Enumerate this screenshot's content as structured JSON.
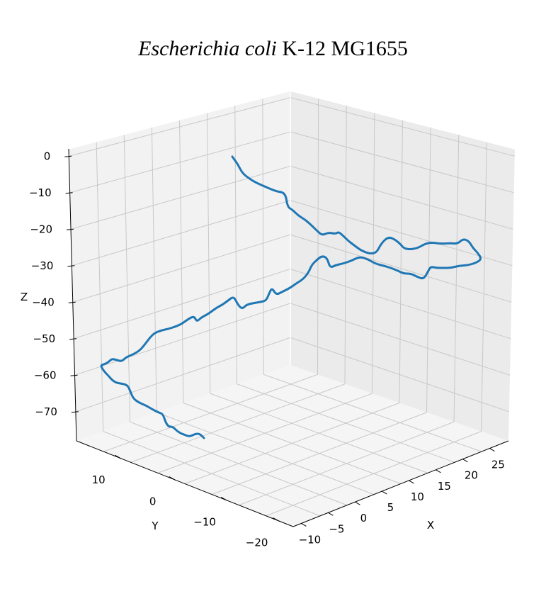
{
  "chart_data": {
    "type": "line",
    "title_italic": "Escherichia coli",
    "title_rest": " K-12 MG1655",
    "xlabel": "X",
    "ylabel": "Y",
    "zlabel": "Z",
    "x_ticks": [
      "−10",
      "−5",
      "0",
      "5",
      "10",
      "15",
      "20",
      "25"
    ],
    "y_ticks": [
      "10",
      "0",
      "−10",
      "−20"
    ],
    "z_ticks": [
      "0",
      "−10",
      "−20",
      "−30",
      "−40",
      "−50",
      "−60",
      "−70"
    ],
    "grid": true,
    "series_color": "#1f77b4",
    "pane_color": "#f2f2f2",
    "grid_color": "#c8c8c8"
  }
}
